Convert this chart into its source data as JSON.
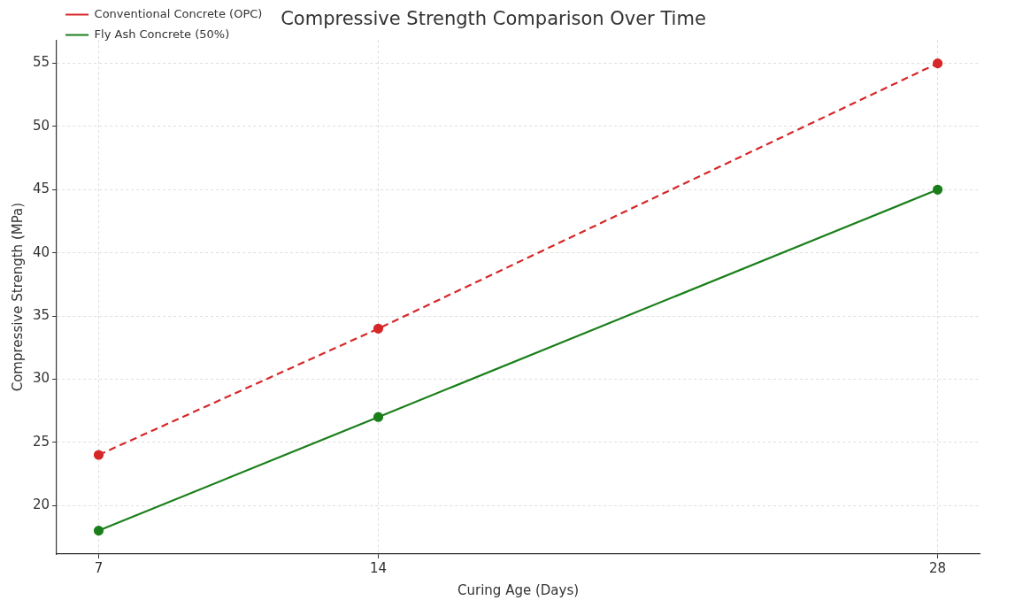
{
  "chart_data": {
    "type": "line",
    "title": "Compressive Strength Comparison Over Time",
    "xlabel": "Curing Age (Days)",
    "ylabel": "Compressive Strength (MPa)",
    "x": [
      7,
      14,
      28
    ],
    "series": [
      {
        "name": "Conventional Concrete (OPC)",
        "color": "#d62728",
        "values": [
          24,
          34,
          55
        ],
        "line_style": "dashed"
      },
      {
        "name": "Fly Ash Concrete (50%)",
        "color": "#1a7f1a",
        "values": [
          18,
          27,
          45
        ],
        "line_style": "solid"
      }
    ],
    "xlim": [
      5.95,
      29.05
    ],
    "xticks": [
      7,
      14,
      28
    ],
    "ylim": [
      16.15,
      56.85
    ],
    "yticks": [
      20,
      25,
      30,
      35,
      40,
      45,
      50,
      55
    ],
    "grid": true,
    "legend": "top left",
    "marker": "circle"
  }
}
